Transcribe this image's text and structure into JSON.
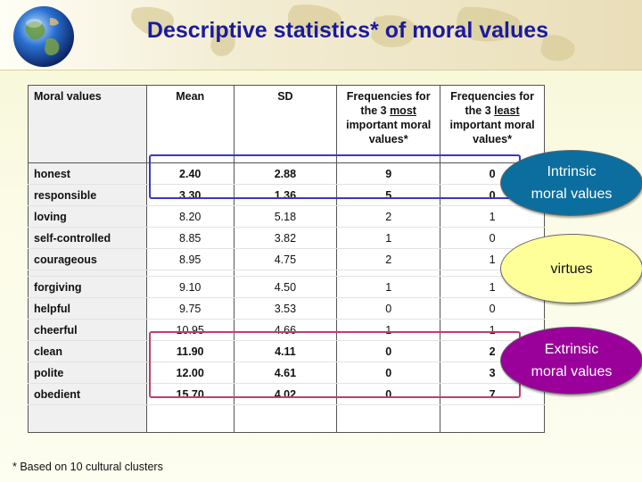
{
  "title": "Descriptive statistics* of moral values",
  "table": {
    "headers": {
      "col0": "Moral values",
      "col1": "Mean",
      "col2": "SD",
      "col3_pre": "Frequencies for the 3 ",
      "col3_em": "most",
      "col3_post": " important moral values*",
      "col4_pre": "Frequencies for the 3 ",
      "col4_em": "least",
      "col4_post": " important moral values*"
    },
    "rows": [
      {
        "value": "honest",
        "mean": "2.40",
        "sd": "2.88",
        "most": "9",
        "least": "0"
      },
      {
        "value": "responsible",
        "mean": "3.30",
        "sd": "1.36",
        "most": "5",
        "least": "0"
      },
      {
        "value": "loving",
        "mean": "8.20",
        "sd": "5.18",
        "most": "2",
        "least": "1"
      },
      {
        "value": "self-controlled",
        "mean": "8.85",
        "sd": "3.82",
        "most": "1",
        "least": "0"
      },
      {
        "value": "courageous",
        "mean": "8.95",
        "sd": "4.75",
        "most": "2",
        "least": "1"
      },
      {
        "value": "forgiving",
        "mean": "9.10",
        "sd": "4.50",
        "most": "1",
        "least": "1"
      },
      {
        "value": "helpful",
        "mean": "9.75",
        "sd": "3.53",
        "most": "0",
        "least": "0"
      },
      {
        "value": "cheerful",
        "mean": "10.95",
        "sd": "4.66",
        "most": "1",
        "least": "1"
      },
      {
        "value": "clean",
        "mean": "11.90",
        "sd": "4.11",
        "most": "0",
        "least": "2"
      },
      {
        "value": "polite",
        "mean": "12.00",
        "sd": "4.61",
        "most": "0",
        "least": "3"
      },
      {
        "value": "obedient",
        "mean": "15.70",
        "sd": "4.02",
        "most": "0",
        "least": "7"
      }
    ]
  },
  "callouts": {
    "intrinsic": {
      "line1": "Intrinsic",
      "line2": "moral values",
      "color": "#0b6e9e"
    },
    "virtues": {
      "line1": "virtues",
      "color": "#ffff99"
    },
    "extrinsic": {
      "line1": "Extrinsic",
      "line2": "moral values",
      "color": "#9a009a"
    }
  },
  "highlight_colors": {
    "intrinsic_box": "#3838c8",
    "extrinsic_box": "#c0406a"
  },
  "footnote": "* Based on 10 cultural clusters",
  "icons": {
    "globe": "globe-icon",
    "background": "world-map-background"
  }
}
